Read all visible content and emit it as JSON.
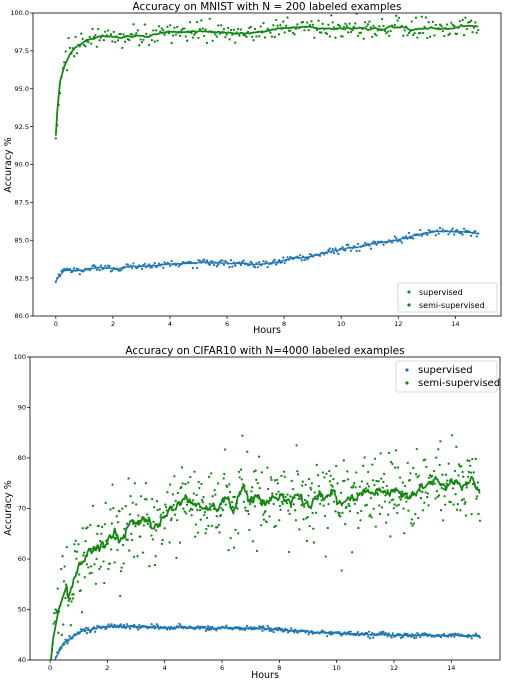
{
  "colors": {
    "supervised": "#1f77b4",
    "semi_supervised": "#128712"
  },
  "chart_data": [
    {
      "type": "scatter",
      "title": "Accuracy on MNIST with N = 200 labeled examples",
      "xlabel": "Hours",
      "ylabel": "Accuracy %",
      "xlim": [
        -0.8,
        15.6
      ],
      "ylim": [
        80.0,
        100.0
      ],
      "xticks": [
        0,
        2,
        4,
        6,
        8,
        10,
        12,
        14
      ],
      "yticks": [
        80.0,
        82.5,
        85.0,
        87.5,
        90.0,
        92.5,
        95.0,
        97.5,
        100.0
      ],
      "ytick_labels": [
        "80.0",
        "82.5",
        "85.0",
        "87.5",
        "90.0",
        "92.5",
        "95.0",
        "97.5",
        "100.0"
      ],
      "legend": {
        "position": "bottom-right",
        "font_size": 8
      },
      "series": [
        {
          "name": "supervised",
          "trend": [
            [
              0,
              82.3
            ],
            [
              0.1,
              82.6
            ],
            [
              0.3,
              83.0
            ],
            [
              1,
              83.05
            ],
            [
              2,
              83.2
            ],
            [
              3,
              83.3
            ],
            [
              4,
              83.4
            ],
            [
              5,
              83.45
            ],
            [
              6,
              83.5
            ],
            [
              7,
              83.4
            ],
            [
              7.5,
              83.45
            ],
            [
              8,
              83.7
            ],
            [
              9,
              84.0
            ],
            [
              10,
              84.4
            ],
            [
              11,
              84.7
            ],
            [
              12,
              85.1
            ],
            [
              13,
              85.5
            ],
            [
              13.5,
              85.6
            ],
            [
              14,
              85.55
            ],
            [
              14.8,
              85.5
            ]
          ],
          "scatter_noise": 0.12,
          "point_count": 300
        },
        {
          "name": "semi-supervised",
          "trend": [
            [
              0,
              91.9
            ],
            [
              0.05,
              93.5
            ],
            [
              0.15,
              95.5
            ],
            [
              0.3,
              96.5
            ],
            [
              0.5,
              97.3
            ],
            [
              0.8,
              98.0
            ],
            [
              1.2,
              98.2
            ],
            [
              2,
              98.4
            ],
            [
              3,
              98.6
            ],
            [
              4,
              98.7
            ],
            [
              5,
              98.75
            ],
            [
              6,
              98.8
            ],
            [
              7,
              98.85
            ],
            [
              8,
              98.9
            ],
            [
              9,
              98.9
            ],
            [
              10,
              98.95
            ],
            [
              11,
              99.0
            ],
            [
              12,
              99.0
            ],
            [
              13,
              99.0
            ],
            [
              14,
              99.0
            ],
            [
              14.8,
              99.0
            ]
          ],
          "scatter_noise": 0.35,
          "point_count": 300
        }
      ]
    },
    {
      "type": "scatter",
      "title": "Accuracy on CIFAR10 with N=4000 labeled examples",
      "xlabel": "Hours",
      "ylabel": "Accuracy %",
      "xlim": [
        -0.7,
        15.7
      ],
      "ylim": [
        40,
        100
      ],
      "xticks": [
        0,
        2,
        4,
        6,
        8,
        10,
        12,
        14
      ],
      "yticks": [
        40,
        50,
        60,
        70,
        80,
        90,
        100
      ],
      "ytick_labels": [
        "40",
        "50",
        "60",
        "70",
        "80",
        "90",
        "100"
      ],
      "legend": {
        "position": "top-right",
        "font_size": 10
      },
      "series": [
        {
          "name": "supervised",
          "trend": [
            [
              0,
              37.0
            ],
            [
              0.2,
              40.5
            ],
            [
              0.5,
              43.5
            ],
            [
              1,
              45.5
            ],
            [
              1.5,
              46.3
            ],
            [
              2,
              46.6
            ],
            [
              2.5,
              46.7
            ],
            [
              3,
              46.6
            ],
            [
              4,
              46.5
            ],
            [
              5,
              46.4
            ],
            [
              6,
              46.3
            ],
            [
              7,
              46.3
            ],
            [
              8,
              46.0
            ],
            [
              9,
              45.6
            ],
            [
              10,
              45.3
            ],
            [
              11,
              45.1
            ],
            [
              12,
              45.0
            ],
            [
              13,
              44.9
            ],
            [
              14,
              44.9
            ],
            [
              15,
              44.9
            ]
          ],
          "scatter_noise": 0.25,
          "point_count": 420
        },
        {
          "name": "semi-supervised",
          "trend": [
            [
              0,
              38.0
            ],
            [
              0.1,
              44.0
            ],
            [
              0.3,
              50.0
            ],
            [
              0.6,
              55.0
            ],
            [
              1,
              58.5
            ],
            [
              1.5,
              62.5
            ],
            [
              2,
              64.5
            ],
            [
              3,
              66.5
            ],
            [
              4,
              68.5
            ],
            [
              5,
              69.8
            ],
            [
              6,
              70.5
            ],
            [
              7,
              71.5
            ],
            [
              8,
              72.3
            ],
            [
              9,
              73.0
            ],
            [
              10,
              73.5
            ],
            [
              11,
              74.0
            ],
            [
              12,
              74.3
            ],
            [
              13,
              74.7
            ],
            [
              14,
              75.2
            ],
            [
              15,
              75.0
            ]
          ],
          "scatter_noise": 4.2,
          "point_count": 620
        }
      ]
    }
  ]
}
